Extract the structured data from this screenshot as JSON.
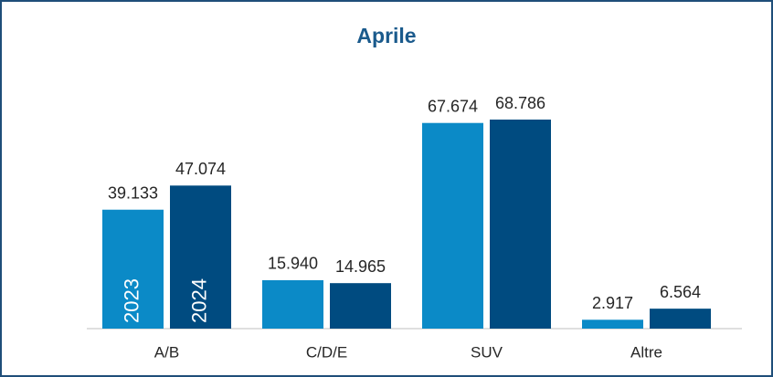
{
  "chart_data": {
    "type": "bar",
    "title": "Aprile",
    "categories": [
      "A/B",
      "C/D/E",
      "SUV",
      "Altre"
    ],
    "series": [
      {
        "name": "2023",
        "color": "#0b8ac7",
        "values": [
          39133,
          15940,
          67674,
          2917
        ],
        "value_labels": [
          "39.133",
          "15.940",
          "67.674",
          "2.917"
        ]
      },
      {
        "name": "2024",
        "color": "#004b80",
        "values": [
          47074,
          14965,
          68786,
          6564
        ],
        "value_labels": [
          "47.074",
          "14.965",
          "68.786",
          "6.564"
        ]
      }
    ]
  }
}
